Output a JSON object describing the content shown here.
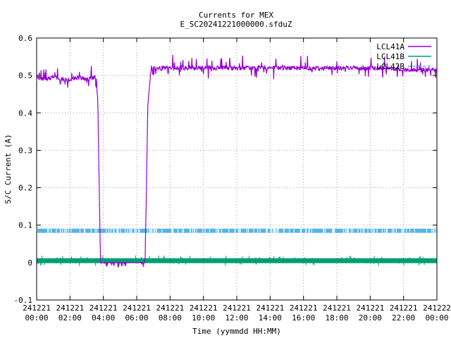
{
  "chart_data": {
    "type": "line",
    "title": "Currents for MEX",
    "subtitle": "E_SC20241221000000.sfduZ",
    "xlabel": "Time (yymmdd HH:MM)",
    "ylabel": "S/C Current (A)",
    "ylim": [
      -0.1,
      0.6
    ],
    "xlim": [
      "241221 00:00",
      "241222 00:00"
    ],
    "grid": true,
    "legend_position": "top-right",
    "yticks": [
      "-0.1",
      "0",
      "0.1",
      "0.2",
      "0.3",
      "0.4",
      "0.5",
      "0.6"
    ],
    "xticks": [
      {
        "date": "241221",
        "time": "00:00"
      },
      {
        "date": "241221",
        "time": "02:00"
      },
      {
        "date": "241221",
        "time": "04:00"
      },
      {
        "date": "241221",
        "time": "06:00"
      },
      {
        "date": "241221",
        "time": "08:00"
      },
      {
        "date": "241221",
        "time": "10:00"
      },
      {
        "date": "241221",
        "time": "12:00"
      },
      {
        "date": "241221",
        "time": "14:00"
      },
      {
        "date": "241221",
        "time": "16:00"
      },
      {
        "date": "241221",
        "time": "18:00"
      },
      {
        "date": "241221",
        "time": "20:00"
      },
      {
        "date": "241221",
        "time": "22:00"
      },
      {
        "date": "241222",
        "time": "00:00"
      }
    ],
    "series": [
      {
        "name": "LCL41A",
        "color": "#9400d3",
        "x": [
          "00:00",
          "00:30",
          "01:00",
          "01:30",
          "02:00",
          "02:30",
          "03:00",
          "03:30",
          "03:40",
          "03:45",
          "03:50",
          "04:00",
          "05:00",
          "06:00",
          "06:30",
          "06:35",
          "06:40",
          "06:50",
          "07:00",
          "08:00",
          "09:00",
          "10:00",
          "11:00",
          "12:00",
          "13:00",
          "14:00",
          "15:00",
          "16:00",
          "17:00",
          "18:00",
          "19:00",
          "20:00",
          "21:00",
          "22:00",
          "23:00",
          "24:00"
        ],
        "values": [
          0.495,
          0.49,
          0.495,
          0.49,
          0.49,
          0.495,
          0.49,
          0.495,
          0.44,
          0.2,
          0.0,
          0.0,
          0.0,
          0.0,
          0.0,
          0.2,
          0.42,
          0.505,
          0.52,
          0.52,
          0.52,
          0.52,
          0.52,
          0.52,
          0.52,
          0.52,
          0.52,
          0.52,
          0.52,
          0.52,
          0.52,
          0.52,
          0.52,
          0.515,
          0.515,
          0.515
        ]
      },
      {
        "name": "LCL41B",
        "color": "#009e73",
        "x": [
          "00:00",
          "24:00"
        ],
        "values": [
          0.005,
          0.005
        ]
      },
      {
        "name": "LCL42B",
        "color": "#56b4e9",
        "x": [
          "00:00",
          "24:00"
        ],
        "values": [
          0.085,
          0.085
        ]
      }
    ]
  }
}
